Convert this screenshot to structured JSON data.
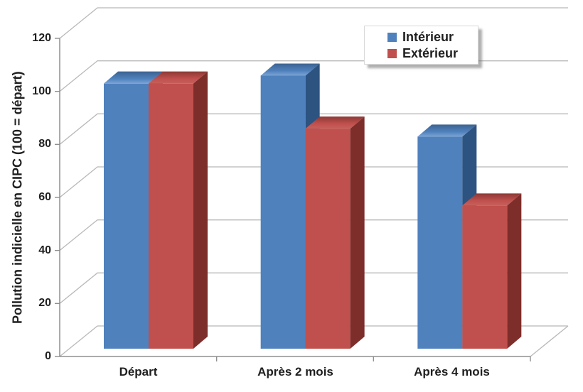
{
  "chart_data": {
    "type": "bar",
    "subtype": "3d_clustered_column",
    "title": "",
    "categories": [
      "Départ",
      "Après 2 mois",
      "Après 4 mois"
    ],
    "series": [
      {
        "name": "Intérieur",
        "color": "#4f81bd",
        "values": [
          100,
          103,
          80
        ]
      },
      {
        "name": "Extérieur",
        "color": "#c0504d",
        "values": [
          100,
          83,
          54
        ]
      }
    ],
    "xlabel": "",
    "ylabel": "Pollution indicielle en CIPC (100 = départ)",
    "yticks": [
      0,
      20,
      40,
      60,
      80,
      100,
      120
    ],
    "ylim": [
      0,
      120
    ],
    "grid": true,
    "legend_position": "top-right",
    "background": "#ffffff",
    "colors": {
      "grid_line": "#b8b8b8",
      "axis_line": "#8f8f8f",
      "text": "#1f1f1f",
      "interieur_front": "#4f81bd",
      "interieur_top_light": "#7ca3d4",
      "interieur_top_dark": "#3d6391",
      "interieur_side": "#2d5380",
      "exterieur_front": "#c0504d",
      "exterieur_top_light": "#c6605c",
      "exterieur_top_dark": "#8c3936",
      "exterieur_side": "#7d2e2b",
      "legend_bg": "#ffffff",
      "legend_border": "#d9d9d9"
    }
  }
}
